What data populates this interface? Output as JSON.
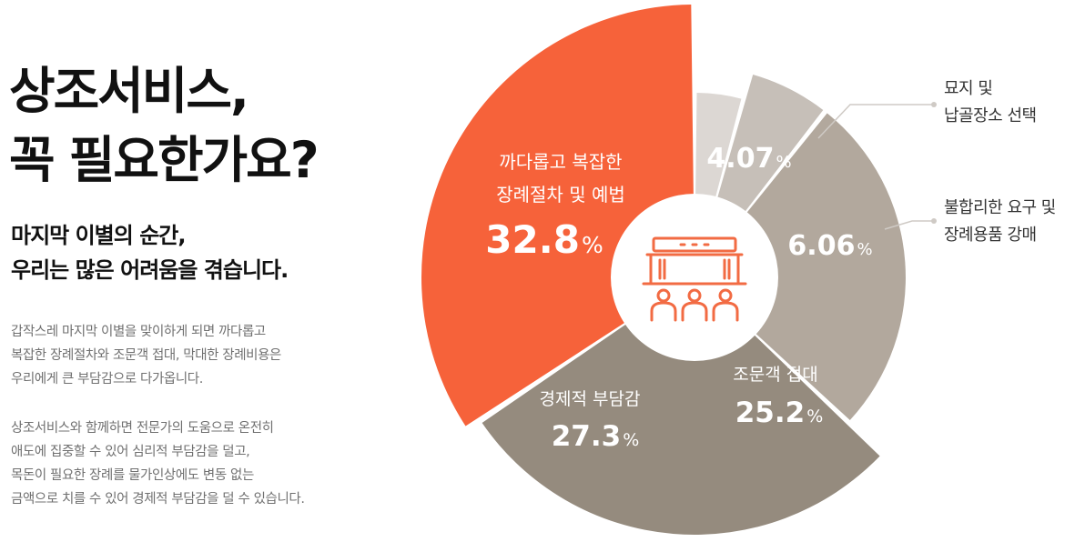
{
  "heading": {
    "title_lines": [
      "상조서비스,",
      "꼭 필요한가요?"
    ],
    "subtitle_lines": [
      "마지막 이별의 순간,",
      "우리는 많은 어려움을 겪습니다."
    ]
  },
  "description": {
    "paragraph1": [
      "갑작스레 마지막 이별을 맞이하게 되면 까다롭고",
      "복잡한 장례절차와 조문객 접대, 막대한 장례비용은",
      "우리에게 큰 부담감으로 다가옵니다."
    ],
    "paragraph2": [
      "상조서비스와 함께하면 전문가의 도움으로 온전히",
      "애도에 집중할 수 있어 심리적 부담감을 덜고,",
      "목돈이 필요한 장례를 물가인상에도 변동 없는",
      "금액으로 치를 수 있어 경제적 부담감을 덜 수 있습니다."
    ]
  },
  "chart_data": {
    "type": "pie",
    "center_icon": "funeral-altar-with-mourners-icon",
    "slices": [
      {
        "label_lines": [
          "묘지 및",
          "납골장소 선택"
        ],
        "value": 4.07,
        "value_label": "4.07",
        "unit": "%",
        "color": "#dcd7d3",
        "label_placement": "outside"
      },
      {
        "label_lines": [
          "불합리한 요구 및",
          "장례용품 강매"
        ],
        "value": 6.06,
        "value_label": "6.06",
        "unit": "%",
        "color": "#c6bfb8",
        "label_placement": "outside"
      },
      {
        "label_lines": [
          "조문객 접대"
        ],
        "value": 25.2,
        "value_label": "25.2",
        "unit": "%",
        "color": "#b2a89d",
        "label_placement": "inside"
      },
      {
        "label_lines": [
          "경제적 부담감"
        ],
        "value": 27.3,
        "value_label": "27.3",
        "unit": "%",
        "color": "#958b7e",
        "label_placement": "inside"
      },
      {
        "label_lines": [
          "까다롭고 복잡한",
          "장례절차 및 예법"
        ],
        "value": 32.8,
        "value_label": "32.8",
        "unit": "%",
        "color": "#f6623a",
        "label_placement": "inside"
      }
    ]
  }
}
